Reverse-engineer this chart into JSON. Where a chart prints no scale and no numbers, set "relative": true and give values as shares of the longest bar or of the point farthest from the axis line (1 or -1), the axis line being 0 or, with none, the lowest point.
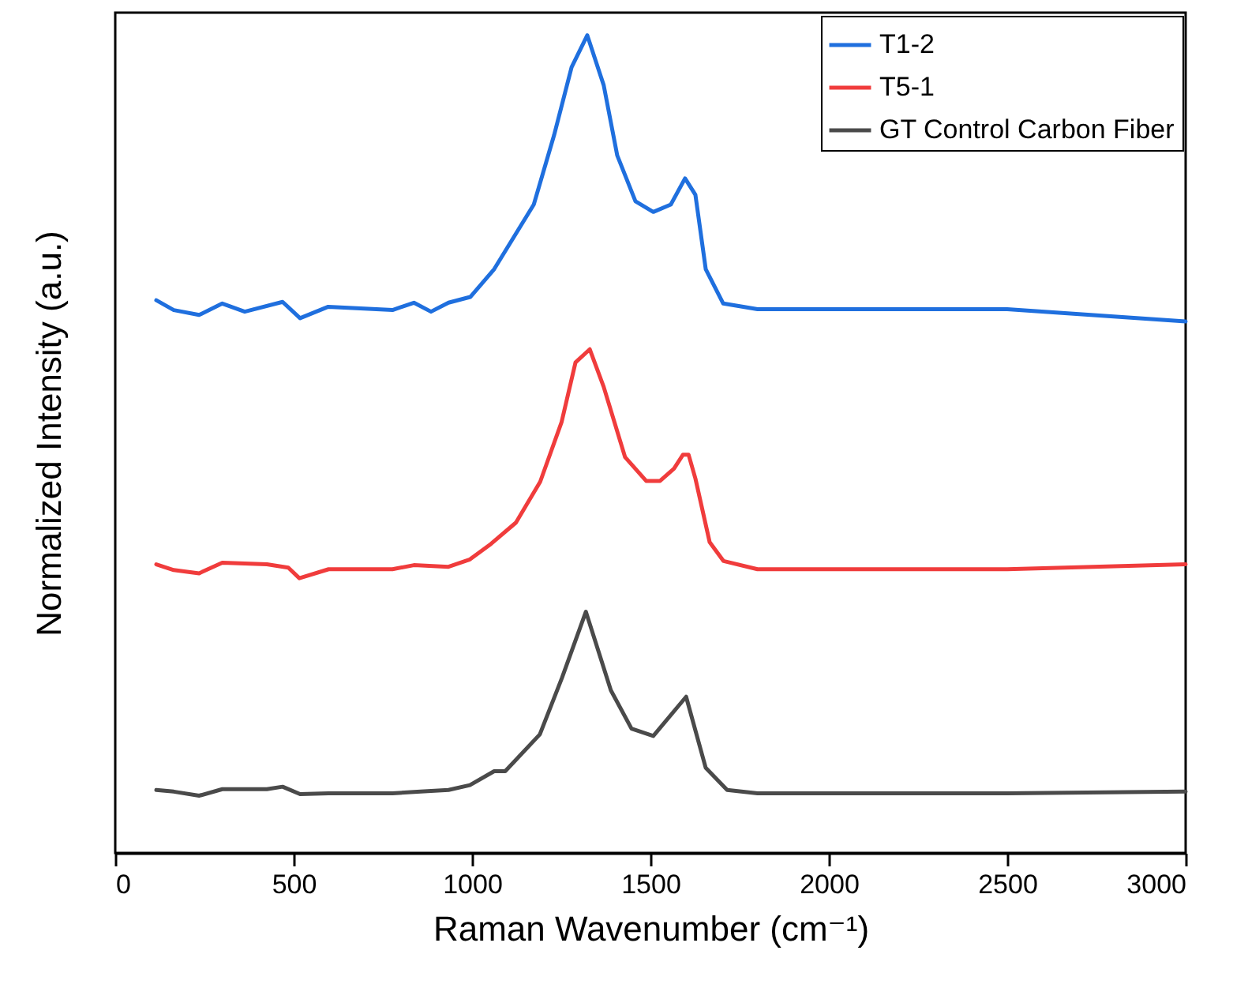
{
  "chart_data": {
    "type": "line",
    "relative": true,
    "xlabel": "Raman Wavenumber (cm⁻¹)",
    "ylabel": "Normalized Intensity (a.u.)",
    "xlim": [
      0,
      3000
    ],
    "xticks": [
      0,
      500,
      1000,
      1500,
      2000,
      2500,
      3000
    ],
    "legend": "top right",
    "series": [
      {
        "name": "T1-2",
        "color": "#1f6fde",
        "x": [
          115,
          164,
          235,
          300,
          363,
          469,
          518,
          597,
          777,
          837,
          885,
          934,
          995,
          1062,
          1173,
          1230,
          1279,
          1323,
          1369,
          1407,
          1458,
          1508,
          1557,
          1597,
          1626,
          1655,
          1704,
          1800,
          2000,
          2500,
          3000
        ],
        "values": [
          0.676,
          0.664,
          0.658,
          0.672,
          0.662,
          0.674,
          0.654,
          0.668,
          0.664,
          0.673,
          0.662,
          0.673,
          0.68,
          0.714,
          0.793,
          0.878,
          0.961,
          1.0,
          0.939,
          0.853,
          0.797,
          0.784,
          0.793,
          0.825,
          0.805,
          0.714,
          0.672,
          0.665,
          0.665,
          0.665,
          0.65
        ]
      },
      {
        "name": "T5-1",
        "color": "#f03c3c",
        "x": [
          115,
          164,
          235,
          300,
          425,
          485,
          516,
          598,
          777,
          837,
          934,
          994,
          1053,
          1123,
          1191,
          1251,
          1290,
          1330,
          1369,
          1429,
          1488,
          1527,
          1566,
          1591,
          1607,
          1626,
          1666,
          1705,
          1800,
          2000,
          2500,
          3000
        ],
        "values": [
          0.353,
          0.346,
          0.342,
          0.355,
          0.353,
          0.349,
          0.336,
          0.347,
          0.347,
          0.352,
          0.35,
          0.359,
          0.378,
          0.404,
          0.454,
          0.527,
          0.6,
          0.616,
          0.57,
          0.484,
          0.455,
          0.455,
          0.47,
          0.487,
          0.487,
          0.458,
          0.38,
          0.357,
          0.347,
          0.347,
          0.347,
          0.353
        ]
      },
      {
        "name": "GT Control Carbon Fiber",
        "color": "#4a4a4a",
        "x": [
          115,
          164,
          235,
          300,
          425,
          469,
          518,
          598,
          777,
          856,
          934,
          994,
          1062,
          1093,
          1190,
          1252,
          1319,
          1389,
          1447,
          1508,
          1600,
          1655,
          1715,
          1800,
          2000,
          2500,
          3000
        ],
        "values": [
          0.077,
          0.075,
          0.07,
          0.078,
          0.078,
          0.081,
          0.072,
          0.073,
          0.073,
          0.075,
          0.077,
          0.083,
          0.1,
          0.1,
          0.145,
          0.214,
          0.295,
          0.199,
          0.152,
          0.143,
          0.191,
          0.104,
          0.077,
          0.073,
          0.073,
          0.073,
          0.075
        ]
      }
    ]
  }
}
